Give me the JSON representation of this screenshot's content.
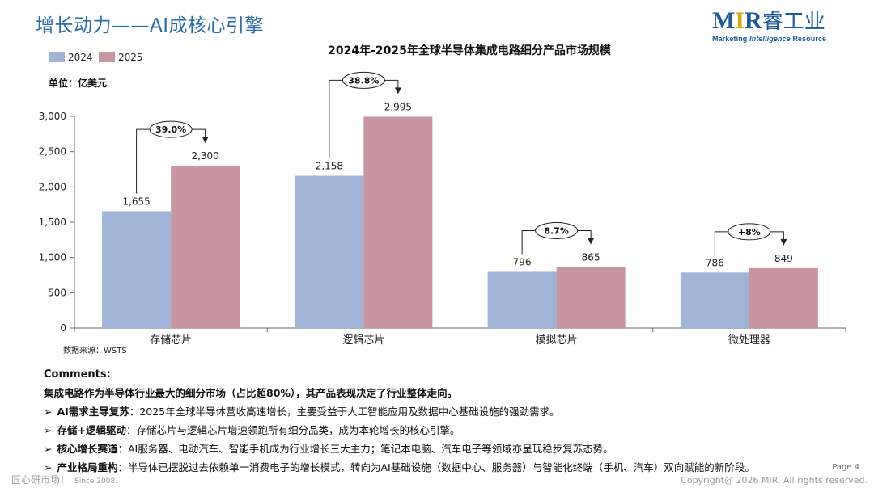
{
  "page": {
    "title": "增长动力——AI成核心引擎",
    "logo_text": "MIR睿工业",
    "logo_tagline": {
      "part1": "Marketing ",
      "part2": "Intelligence",
      "part3": " Resource"
    }
  },
  "chart_data": {
    "type": "bar",
    "title": "2024年-2025年全球半导体集成电路细分产品市场规模",
    "unit_label": "单位：亿美元",
    "source": "数据来源：WSTS",
    "categories": [
      "存储芯片",
      "逻辑芯片",
      "模拟芯片",
      "微处理器"
    ],
    "series": [
      {
        "name": "2024",
        "values": [
          1655,
          2158,
          796,
          786
        ],
        "value_labels": [
          "1,655",
          "2,158",
          "796",
          "786"
        ],
        "color": "#9fb4d6"
      },
      {
        "name": "2025",
        "values": [
          2300,
          2995,
          865,
          849
        ],
        "value_labels": [
          "2,300",
          "2,995",
          "865",
          "849"
        ],
        "color": "#c995a1"
      }
    ],
    "growth_labels": [
      "39.0%",
      "38.8%",
      "8.7%",
      "+8%"
    ],
    "ylim": [
      0,
      3000
    ],
    "yticks": [
      0,
      500,
      1000,
      1500,
      2000,
      2500,
      3000
    ],
    "ytick_labels": [
      "0",
      "500",
      "1,000",
      "1,500",
      "2,000",
      "2,500",
      "3,000"
    ],
    "legend_position": "top-left"
  },
  "comments": {
    "heading": "Comments:",
    "lead": "集成电路作为半导体行业最大的细分市场（占比超80%），其产品表现决定了行业整体走向。",
    "bullets": [
      {
        "key": "AI需求主导复苏",
        "text": "：2025年全球半导体营收高速增长，主要受益于人工智能应用及数据中心基础设施的强劲需求。"
      },
      {
        "key": "存储+逻辑驱动",
        "text": "：存储芯片与逻辑芯片增速领跑所有细分品类，成为本轮增长的核心引擎。"
      },
      {
        "key": "核心增长赛道",
        "text": "：AI服务器、电动汽车、智能手机成为行业增长三大主力；笔记本电脑、汽车电子等领域亦呈现稳步复苏态势。"
      },
      {
        "key": "产业格局重构",
        "text": "：半导体已摆脱过去依赖单一消费电子的增长模式，转向为AI基础设施（数据中心、服务器）与智能化终端（手机、汽车）双向赋能的新阶段。"
      }
    ],
    "arrow": "➢"
  },
  "footer": {
    "slogan": "匠心研市场！",
    "since": "Since 2008.",
    "page_label": "Page 4",
    "copyright": "Copyright@ 2026 MIR. All rights reserved."
  }
}
